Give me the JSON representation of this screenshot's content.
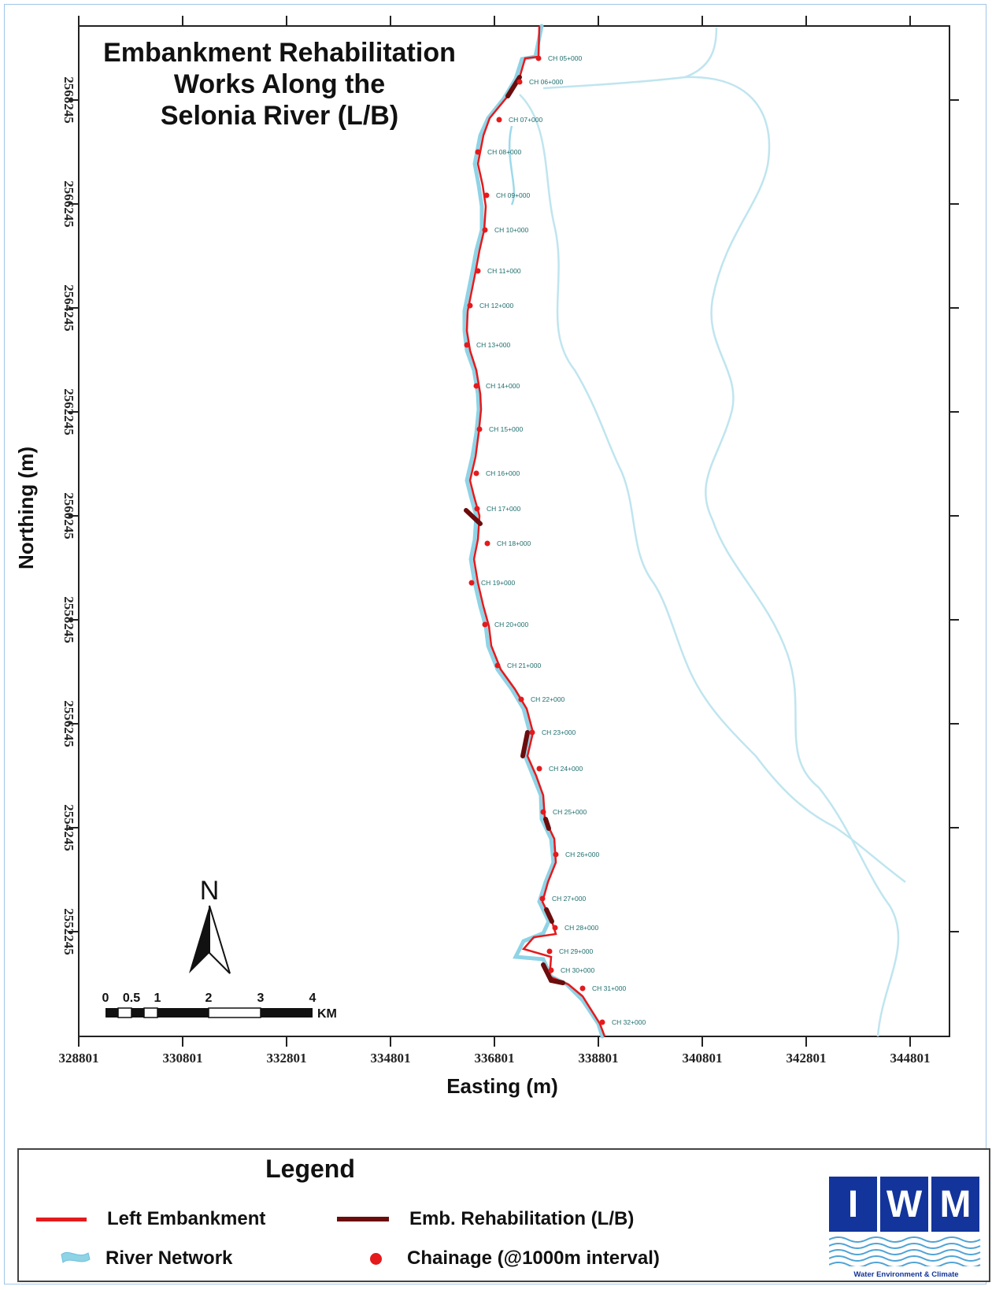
{
  "map": {
    "title_lines": [
      "Embankment Rehabilitation",
      "Works Along the",
      "Selonia River (L/B)"
    ],
    "x_axis_title": "Easting (m)",
    "y_axis_title": "Northing (m)",
    "x_ticks": [
      "328801",
      "330801",
      "332801",
      "334801",
      "336801",
      "338801",
      "340801",
      "342801",
      "344801"
    ],
    "y_ticks": [
      "2568245",
      "2566245",
      "2564245",
      "2562245",
      "2560245",
      "2558245",
      "2556245",
      "2554245",
      "2552245"
    ],
    "chainages": [
      "CH 05+000",
      "CH 06+000",
      "CH 07+000",
      "CH 08+000",
      "CH 09+000",
      "CH 10+000",
      "CH 11+000",
      "CH 12+000",
      "CH 13+000",
      "CH 14+000",
      "CH 15+000",
      "CH 16+000",
      "CH 17+000",
      "CH 18+000",
      "CH 19+000",
      "CH 20+000",
      "CH 21+000",
      "CH 22+000",
      "CH 23+000",
      "CH 24+000",
      "CH 25+000",
      "CH 26+000",
      "CH 27+000",
      "CH 28+000",
      "CH 29+000",
      "CH 30+000",
      "CH 31+000",
      "CH 32+000"
    ],
    "north_arrow_label": "N",
    "scale_bar_numbers": [
      "0",
      "0.5",
      "1",
      "2",
      "3",
      "4"
    ],
    "scale_bar_unit": "KM",
    "colors": {
      "left_embankment": "#e41a1c",
      "rehabilitation": "#6b0d0d",
      "river": "#8fd3e6",
      "chainage": "#e41a1c"
    }
  },
  "legend": {
    "title": "Legend",
    "items": [
      {
        "label": "Left Embankment",
        "symbol": "red-line"
      },
      {
        "label": "Emb. Rehabilitation (L/B)",
        "symbol": "dark-red-line"
      },
      {
        "label": "River Network",
        "symbol": "river-icon"
      },
      {
        "label": "Chainage (@1000m interval)",
        "symbol": "red-dot"
      }
    ]
  },
  "logo": {
    "letters": [
      "I",
      "W",
      "M"
    ],
    "tagline": "Water Environment & Climate"
  }
}
